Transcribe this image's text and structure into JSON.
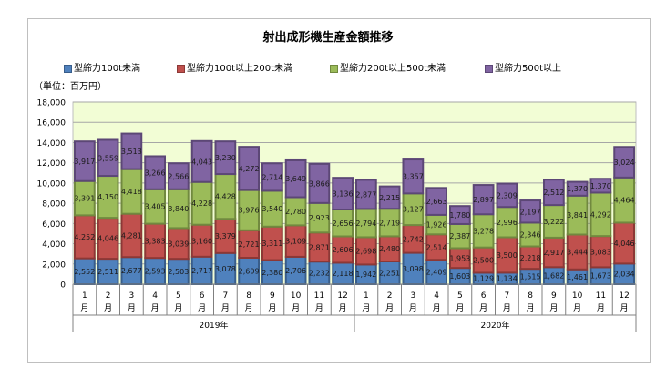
{
  "chart_data": {
    "type": "bar",
    "stacked": true,
    "title": "射出成形機生産金額推移",
    "unit_label": "（単位：百万円）",
    "ylim": [
      0,
      18000
    ],
    "yticks": [
      0,
      2000,
      4000,
      6000,
      8000,
      10000,
      12000,
      14000,
      16000,
      18000
    ],
    "ytick_labels": [
      "0",
      "2,000",
      "4,000",
      "6,000",
      "8,000",
      "10,000",
      "12,000",
      "14,000",
      "16,000",
      "18,000"
    ],
    "grid": true,
    "legend_position": "top",
    "categories": [
      "1",
      "2",
      "3",
      "4",
      "5",
      "6",
      "7",
      "8",
      "9",
      "10",
      "11",
      "12",
      "1",
      "2",
      "3",
      "4",
      "5",
      "6",
      "7",
      "8",
      "9",
      "10",
      "11",
      "12"
    ],
    "category_suffix": "月",
    "groups": [
      {
        "label": "2019年",
        "count": 12
      },
      {
        "label": "2020年",
        "count": 12
      }
    ],
    "series": [
      {
        "name": "型締力100t未満",
        "color": "#4f81bd",
        "border": "#385d8a",
        "values": [
          2552,
          2511,
          2677,
          2593,
          2503,
          2717,
          3078,
          2609,
          2380,
          2706,
          2232,
          2118,
          1942,
          2251,
          3098,
          2409,
          1603,
          1129,
          1134,
          1515,
          1682,
          1461,
          1673,
          2034
        ]
      },
      {
        "name": "型締力100t以上200t未満",
        "color": "#c0504d",
        "border": "#8c3836",
        "values": [
          4252,
          4046,
          4281,
          3383,
          3039,
          3160,
          3379,
          2721,
          3311,
          3109,
          2871,
          2606,
          2698,
          2480,
          2742,
          2514,
          1953,
          2500,
          3500,
          2218,
          2917,
          3444,
          3083,
          4046
        ]
      },
      {
        "name": "型締力200t以上500t未満",
        "color": "#9bbb59",
        "border": "#71893f",
        "values": [
          3391,
          4150,
          4418,
          3405,
          3840,
          4228,
          4428,
          3976,
          3540,
          2780,
          2923,
          2656,
          2794,
          2719,
          3127,
          1926,
          2387,
          3278,
          2996,
          2346,
          3222,
          3841,
          4292,
          4464
        ]
      },
      {
        "name": "型締力500t以上",
        "color": "#8064a2",
        "border": "#5c4776",
        "values": [
          3917,
          3559,
          3513,
          3266,
          2566,
          4043,
          3230,
          4272,
          2714,
          3649,
          3866,
          3136,
          2877,
          2215,
          3357,
          2663,
          1780,
          2897,
          2309,
          2197,
          2512,
          1370,
          1370,
          3024
        ]
      }
    ],
    "plot_background": "#f2fdd5"
  }
}
